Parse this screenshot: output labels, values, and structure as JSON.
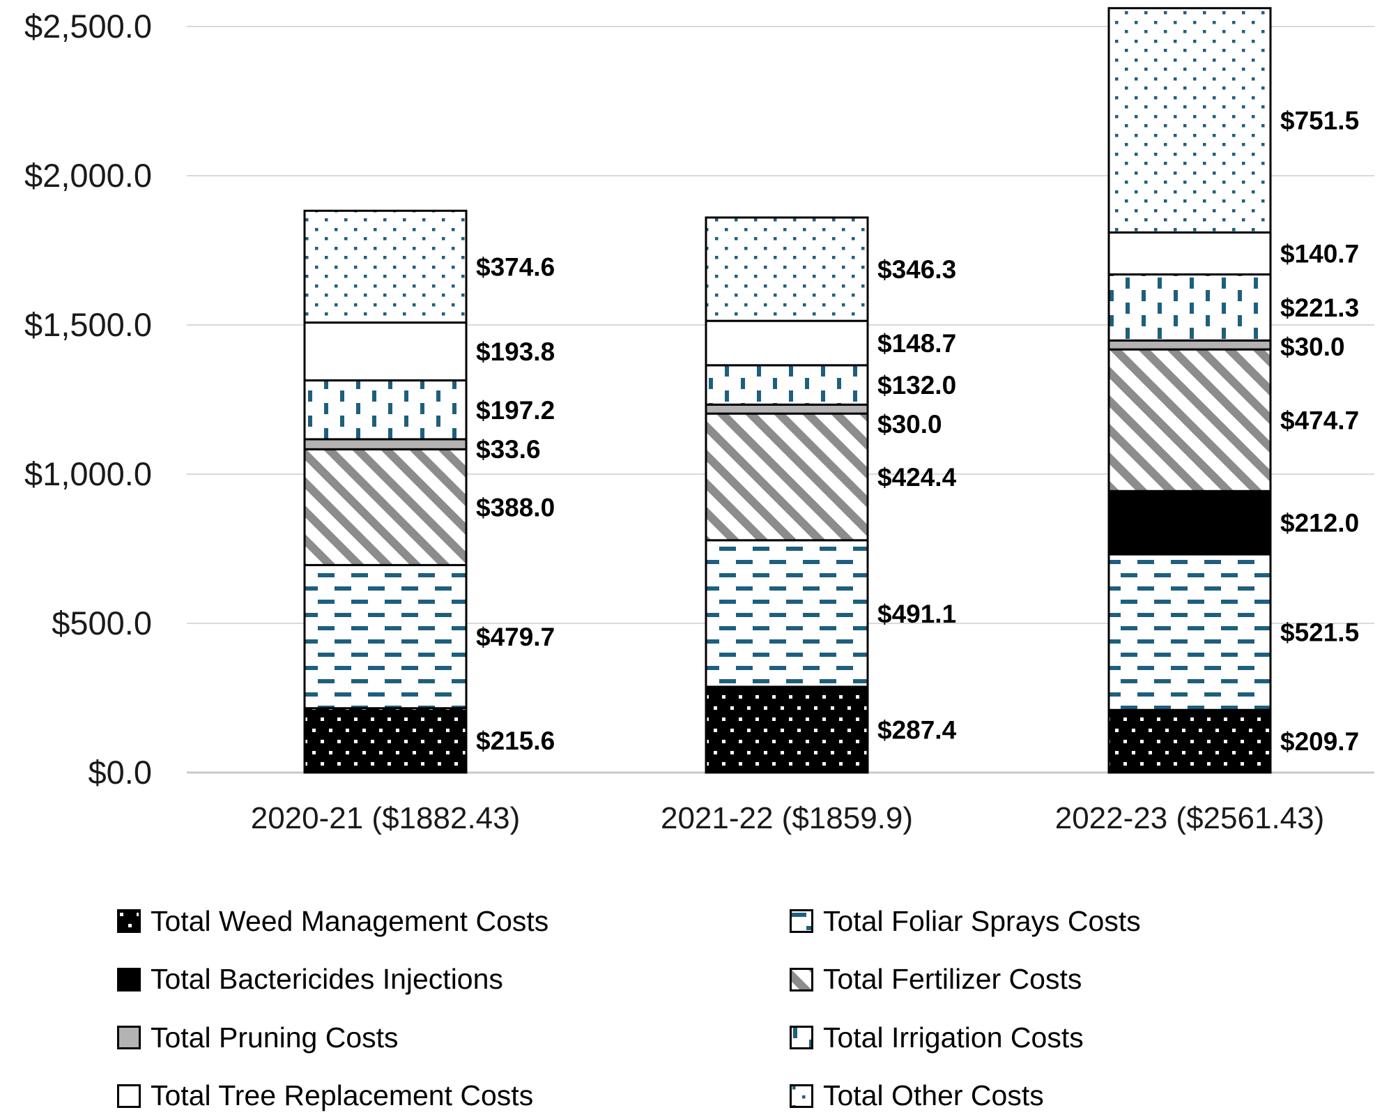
{
  "chart_data": {
    "type": "bar",
    "subtype": "stacked-column",
    "title": "",
    "categories": [
      "2020-21 ($1882.43)",
      "2021-22 ($1859.9)",
      "2022-23 ($2561.43)"
    ],
    "category_totals": [
      1882.43,
      1859.9,
      2561.43
    ],
    "series": [
      {
        "name": "Total Weed Management Costs",
        "pattern": "black-white-dots",
        "values": [
          215.6,
          287.4,
          209.7
        ]
      },
      {
        "name": "Total Foliar Sprays Costs",
        "pattern": "teal-horizontal-dashes",
        "values": [
          479.7,
          491.1,
          521.5
        ]
      },
      {
        "name": "Total Bactericides Injections",
        "pattern": "solid-black",
        "values": [
          0,
          0,
          212.0
        ]
      },
      {
        "name": "Total Fertilizer Costs",
        "pattern": "gray-diagonal-stripes",
        "values": [
          388.0,
          424.4,
          474.7
        ]
      },
      {
        "name": "Total Pruning Costs",
        "pattern": "solid-gray",
        "values": [
          33.6,
          30.0,
          30.0
        ]
      },
      {
        "name": "Total Irrigation Costs",
        "pattern": "teal-vertical-dashes",
        "values": [
          197.2,
          132.0,
          221.3
        ]
      },
      {
        "name": "Total Tree Replacement Costs",
        "pattern": "plain-white",
        "values": [
          193.8,
          148.7,
          140.7
        ]
      },
      {
        "name": "Total Other Costs",
        "pattern": "teal-dots",
        "values": [
          374.6,
          346.3,
          751.5
        ]
      }
    ],
    "data_label_prefix": "$",
    "data_label_decimals": 1,
    "y_axis": {
      "min": 0,
      "max": 2500,
      "step": 500,
      "ticks": [
        "$0.0",
        "$500.0",
        "$1,000.0",
        "$1,500.0",
        "$2,000.0",
        "$2,500.0"
      ]
    },
    "grid": true,
    "legend_position": "bottom",
    "legend_columns": 2
  },
  "colors": {
    "teal": "#1E5F7E",
    "stripe_gray": "#8C8C8C",
    "solid_gray": "#B3B3B3",
    "black": "#000000",
    "white": "#FFFFFF",
    "gridline": "#D9D9D9",
    "axis_line": "#C9C9C9",
    "text": "#1a1a1a"
  }
}
